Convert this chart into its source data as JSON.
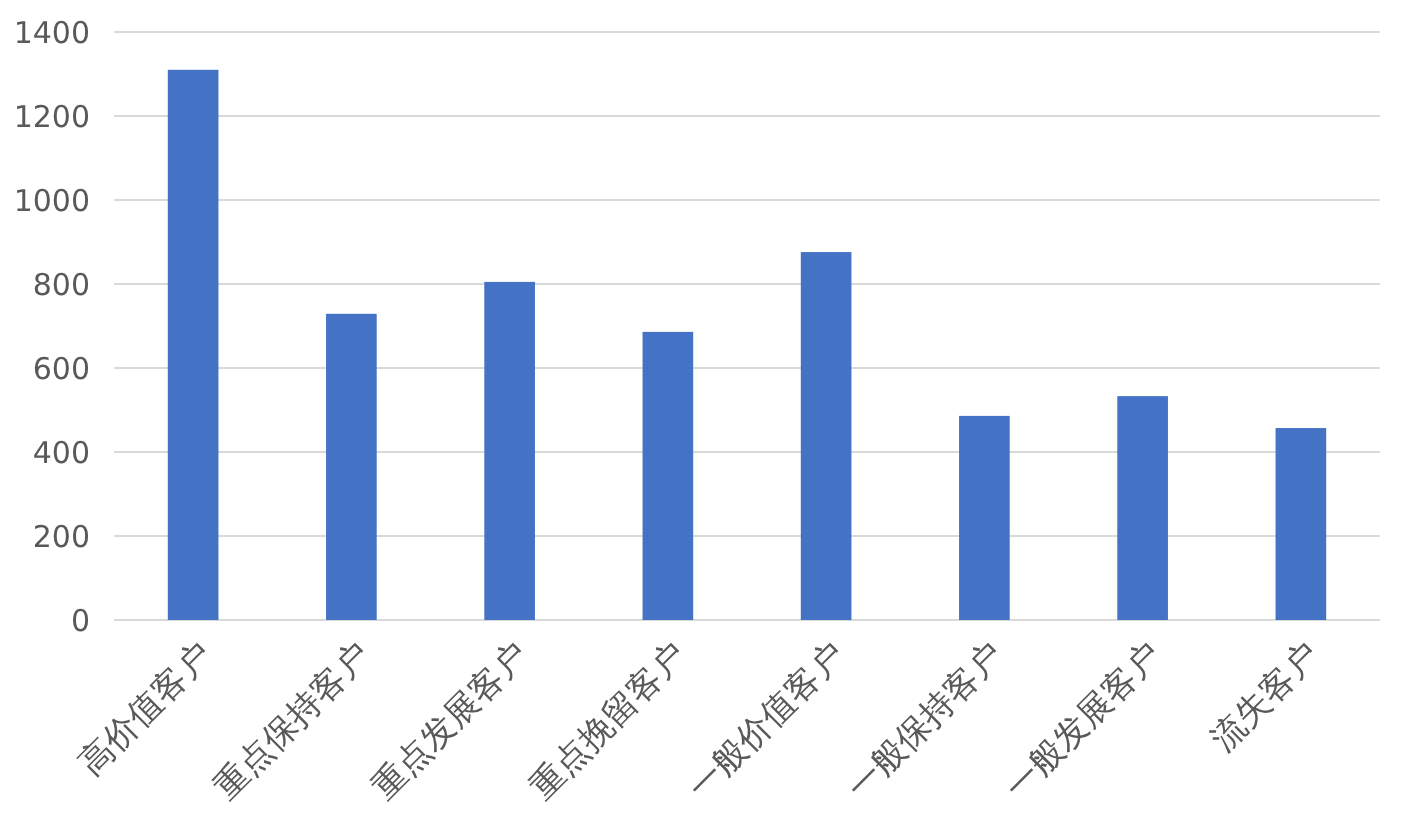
{
  "chart_data": {
    "type": "bar",
    "categories": [
      "高价值客户",
      "重点保持客户",
      "重点发展客户",
      "重点挽留客户",
      "一般价值客户",
      "一般保持客户",
      "一般发展客户",
      "流失客户"
    ],
    "values": [
      1310,
      729,
      805,
      686,
      876,
      486,
      533,
      457
    ],
    "color": "#4472c4",
    "ylim": [
      0,
      1400
    ],
    "yticks": [
      0,
      200,
      400,
      600,
      800,
      1000,
      1200,
      1400
    ],
    "grid": "y"
  }
}
